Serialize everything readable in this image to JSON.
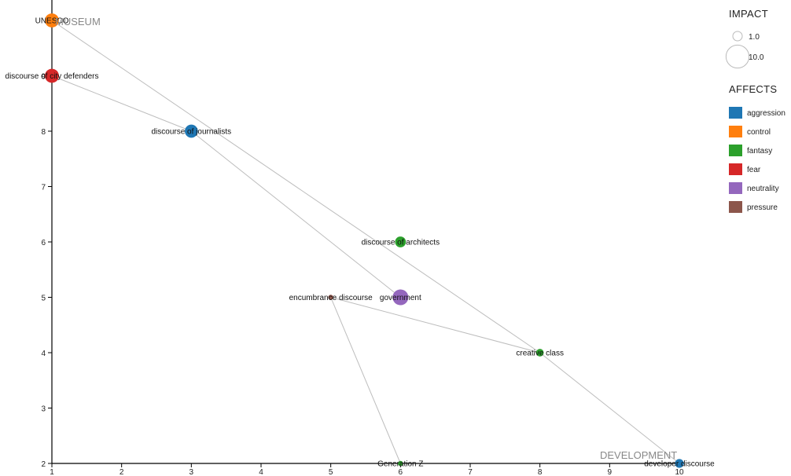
{
  "chart_data": {
    "type": "scatter",
    "title": "",
    "xlabel": "",
    "ylabel": "",
    "xlim": [
      1,
      10
    ],
    "ylim": [
      2,
      10
    ],
    "x_ticks": [
      1,
      2,
      3,
      4,
      5,
      6,
      7,
      8,
      9,
      10
    ],
    "y_ticks": [
      2,
      3,
      4,
      5,
      6,
      7,
      8,
      9
    ],
    "axis_labels": {
      "top_left": "MUSEUM",
      "bottom_right": "DEVELOPMENT"
    },
    "legend": {
      "impact_title": "IMPACT",
      "impact_entries": [
        {
          "label": "1.0",
          "value": 1
        },
        {
          "label": "10.0",
          "value": 10
        }
      ],
      "affects_title": "AFFECTS",
      "affects": [
        {
          "name": "aggression",
          "color": "#1f77b4"
        },
        {
          "name": "control",
          "color": "#ff7f0e"
        },
        {
          "name": "fantasy",
          "color": "#2ca02c"
        },
        {
          "name": "fear",
          "color": "#d62728"
        },
        {
          "name": "neutrality",
          "color": "#9467bd"
        },
        {
          "name": "pressure",
          "color": "#8c564b"
        }
      ]
    },
    "nodes": [
      {
        "id": "unesco",
        "label": "UNESCO",
        "x": 1,
        "y": 10,
        "impact": 3,
        "affect": "control"
      },
      {
        "id": "city-defenders",
        "label": "discourse of city defenders",
        "x": 1,
        "y": 9,
        "impact": 3,
        "affect": "fear"
      },
      {
        "id": "journalists",
        "label": "discourse of journalists",
        "x": 3,
        "y": 8,
        "impact": 2.5,
        "affect": "aggression"
      },
      {
        "id": "architects",
        "label": "discourse of architects",
        "x": 6,
        "y": 6,
        "impact": 1.5,
        "affect": "fantasy"
      },
      {
        "id": "government",
        "label": "government",
        "x": 6,
        "y": 5,
        "impact": 4,
        "affect": "neutrality"
      },
      {
        "id": "encumbrance",
        "label": "encumbrance discourse",
        "x": 5,
        "y": 5,
        "impact": 0.1,
        "affect": "pressure"
      },
      {
        "id": "creative-class",
        "label": "creative class",
        "x": 8,
        "y": 4,
        "impact": 0.5,
        "affect": "fantasy"
      },
      {
        "id": "generation-z",
        "label": "Generation Z",
        "x": 6,
        "y": 2,
        "impact": 0.1,
        "affect": "fantasy"
      },
      {
        "id": "developer",
        "label": "developer discourse",
        "x": 10,
        "y": 2,
        "impact": 0.8,
        "affect": "aggression"
      }
    ],
    "links": [
      [
        "unesco",
        "creative-class"
      ],
      [
        "city-defenders",
        "journalists"
      ],
      [
        "journalists",
        "government"
      ],
      [
        "encumbrance",
        "creative-class"
      ],
      [
        "encumbrance",
        "generation-z"
      ],
      [
        "creative-class",
        "developer"
      ]
    ]
  }
}
